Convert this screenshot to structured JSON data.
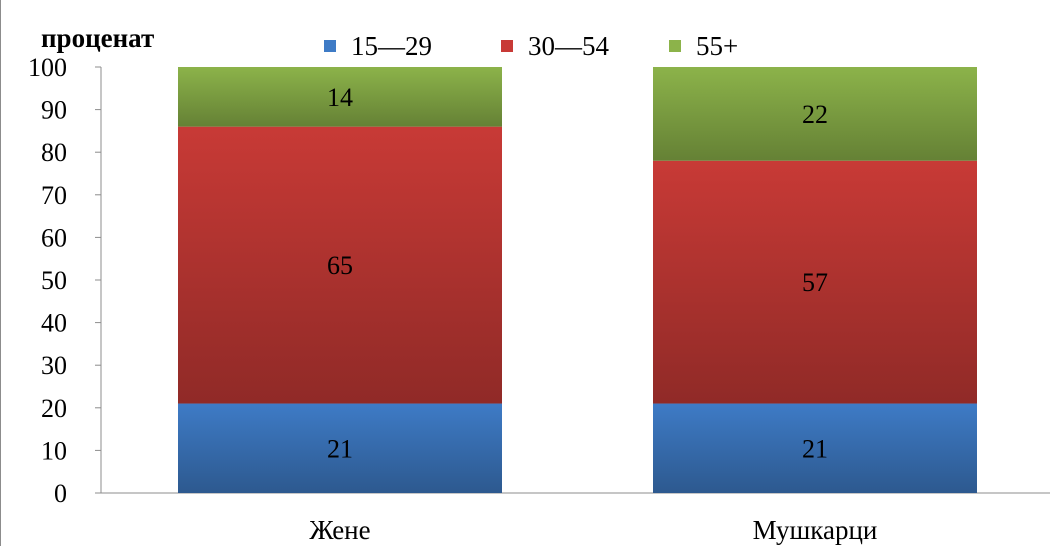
{
  "chart_data": {
    "type": "bar",
    "stacked": true,
    "ylabel": "проценат",
    "categories": [
      "Жене",
      "Мушкарци"
    ],
    "series": [
      {
        "name": "15—29",
        "values": [
          21,
          21
        ],
        "color": "#3e7bc6"
      },
      {
        "name": "30—54",
        "values": [
          65,
          57
        ],
        "color": "#c83a36"
      },
      {
        "name": "55+",
        "values": [
          14,
          22
        ],
        "color": "#8cb34a"
      }
    ],
    "yticks": [
      "0",
      "10",
      "20",
      "30",
      "40",
      "50",
      "60",
      "70",
      "80",
      "90",
      "100"
    ],
    "ylim": [
      0,
      100
    ],
    "legend_position": "top",
    "grid": false
  }
}
